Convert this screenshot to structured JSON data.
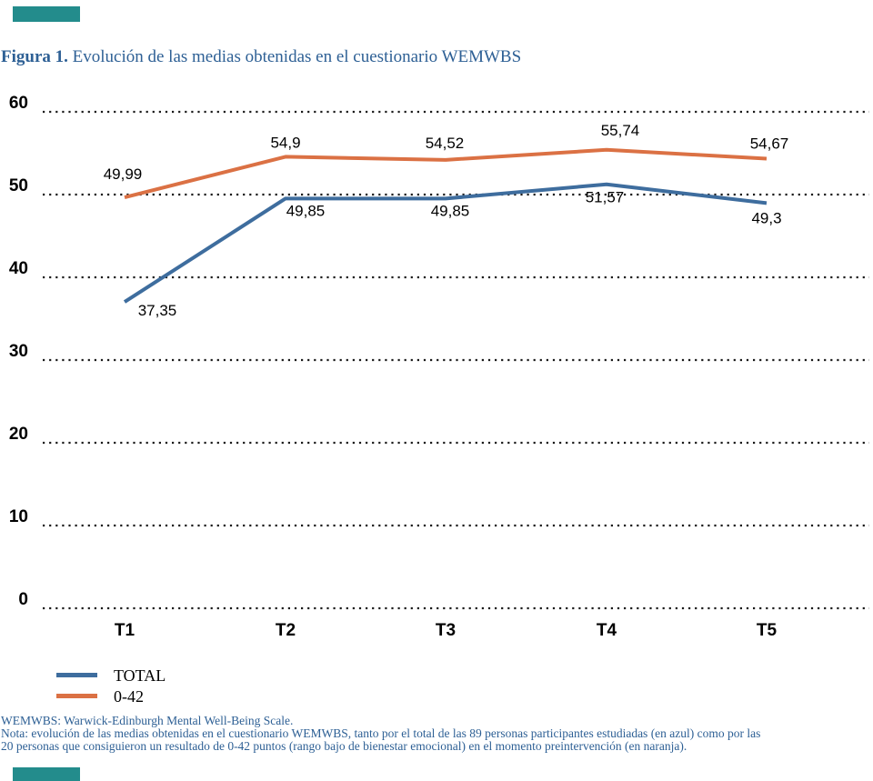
{
  "title": {
    "prefix": "Figura 1.",
    "text": " Evolución de las medias obtenidas en el cuestionario WEMWBS",
    "color": "#2E6095"
  },
  "chart_data": {
    "type": "line",
    "title": "Figura 1. Evolución de las medias obtenidas en el cuestionario WEMWBS",
    "categories": [
      "T1",
      "T2",
      "T3",
      "T4",
      "T5"
    ],
    "series": [
      {
        "name": "TOTAL",
        "color": "#3E6D9E",
        "values": [
          37.35,
          49.85,
          49.85,
          51.57,
          49.3
        ],
        "point_labels": [
          "37,35",
          "49,85",
          "49,85",
          "51,57",
          "49,3"
        ]
      },
      {
        "name": "0-42",
        "color": "#DB7144",
        "values": [
          49.99,
          54.9,
          54.52,
          55.74,
          54.67
        ],
        "point_labels": [
          "49,99",
          "54,9",
          "54,52",
          "55,74",
          "54,67"
        ]
      }
    ],
    "yticks": [
      0,
      10,
      20,
      30,
      40,
      50,
      60
    ],
    "ylim": [
      0,
      60
    ],
    "xlabel": "",
    "ylabel": "",
    "grid": "horizontal-dotted",
    "gridline_color": "#1a1a1a",
    "tick_label_color": "#000000",
    "legend_position": "bottom-left",
    "decimal_separator": ","
  },
  "decor": {
    "accent_bar_color": "#238C8C"
  },
  "footnotes": {
    "line1": "WEMWBS: Warwick-Edinburgh Mental Well-Being Scale.",
    "line2": "Nota: evolución de las medias obtenidas en el cuestionario WEMWBS, tanto por el total de las 89 personas participantes estudiadas (en azul) como por las",
    "line3": "20 personas que consiguieron un resultado de 0-42 puntos (rango bajo de bienestar emocional) en el momento preintervención (en naranja).",
    "color": "#2E6095"
  }
}
